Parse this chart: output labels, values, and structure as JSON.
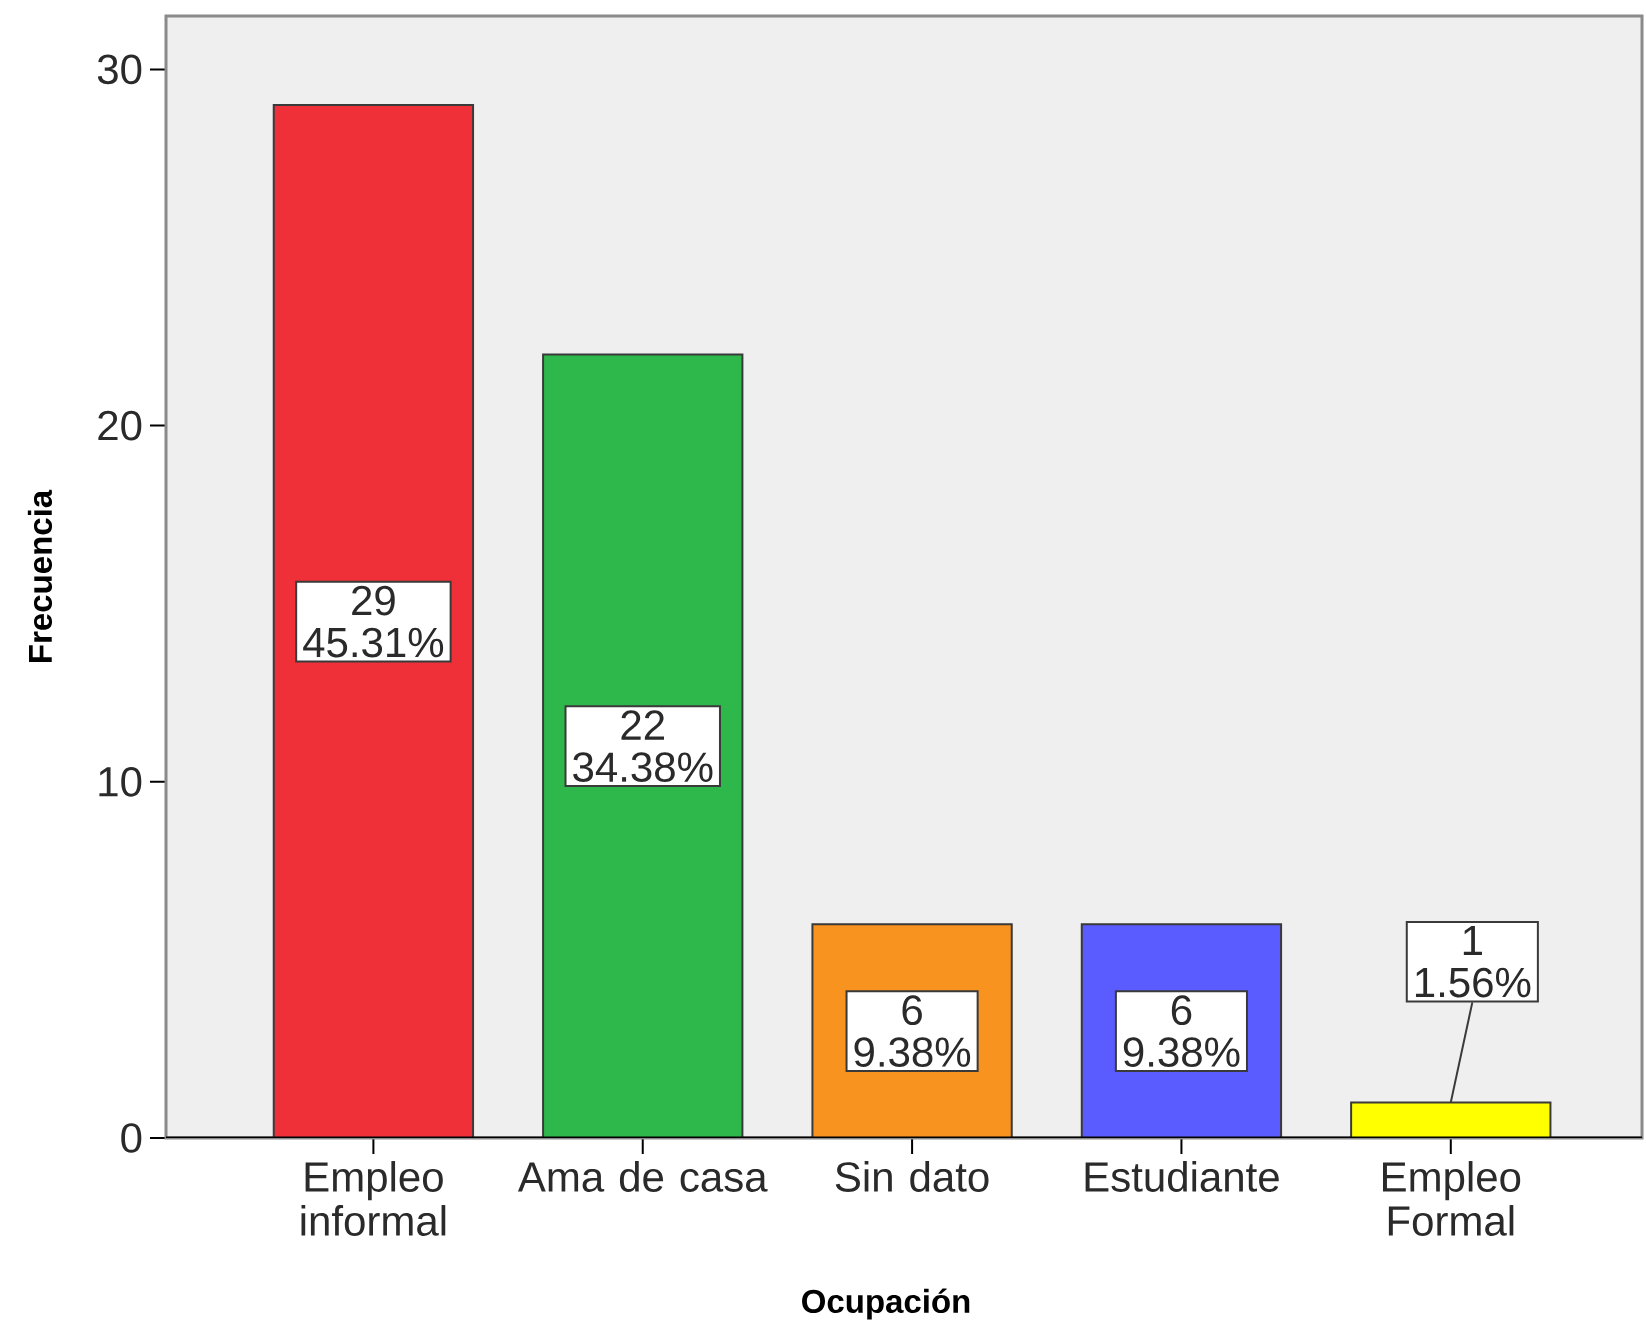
{
  "chart_data": {
    "type": "bar",
    "xlabel": "Ocupación",
    "ylabel": "Frecuencia",
    "categories": [
      "Empleo informal",
      "Ama de casa",
      "Sin dato",
      "Estudiante",
      "Empleo Formal"
    ],
    "values": [
      29,
      22,
      6,
      6,
      1
    ],
    "colors": [
      "#ef3038",
      "#2eb84b",
      "#f7931e",
      "#5a5cff",
      "#ffff00"
    ],
    "value_labels": [
      "29 45.31%",
      "22 34.38%",
      "6 9.38%",
      "6 9.38%",
      "1 1.56%"
    ],
    "ylim": [
      0,
      31.5
    ],
    "yticks": [
      0,
      10,
      20,
      30
    ]
  }
}
